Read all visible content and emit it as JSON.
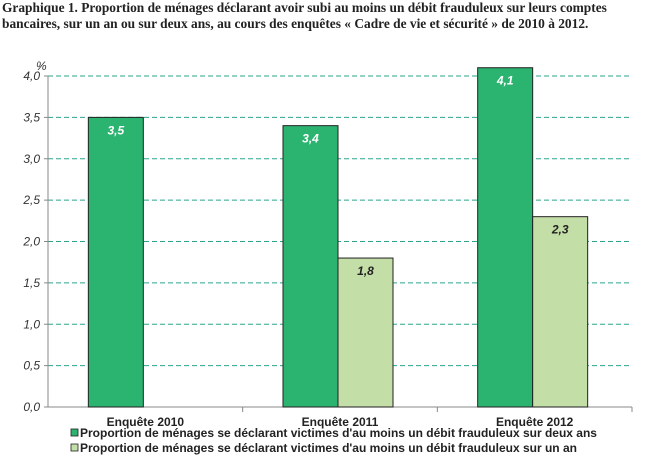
{
  "chart_data": {
    "type": "bar",
    "title": "Graphique 1. Proportion de ménages déclarant avoir subi au moins un débit frauduleux sur leurs comptes bancaires, sur un an ou sur deux ans, au cours des enquêtes « Cadre de vie et sécurité » de 2010 à 2012.",
    "ylabel": "%",
    "xlabel": "",
    "ylim": [
      0,
      4.0
    ],
    "yticks": [
      "0,0",
      "0,5",
      "1,0",
      "1,5",
      "2,0",
      "2,5",
      "3,0",
      "3,5",
      "4,0"
    ],
    "grid": true,
    "legend_position": "bottom",
    "categories": [
      "Enquête 2010",
      "Enquête 2011",
      "Enquête 2012"
    ],
    "series": [
      {
        "name": "Proportion de ménages se déclarant victimes d'au moins un débit frauduleux sur deux ans",
        "values": [
          3.5,
          3.4,
          4.1
        ],
        "labels": [
          "3,5",
          "3,4",
          "4,1"
        ],
        "color": "#2bb370",
        "label_color": "#ffffff"
      },
      {
        "name": "Proportion de ménages se déclarant victimes d'au moins un débit frauduleux sur un an",
        "values": [
          null,
          1.8,
          2.3
        ],
        "labels": [
          null,
          "1,8",
          "2,3"
        ],
        "color": "#c4dea8",
        "label_color": "#222222"
      }
    ],
    "grid_color": "#2aa58a"
  }
}
